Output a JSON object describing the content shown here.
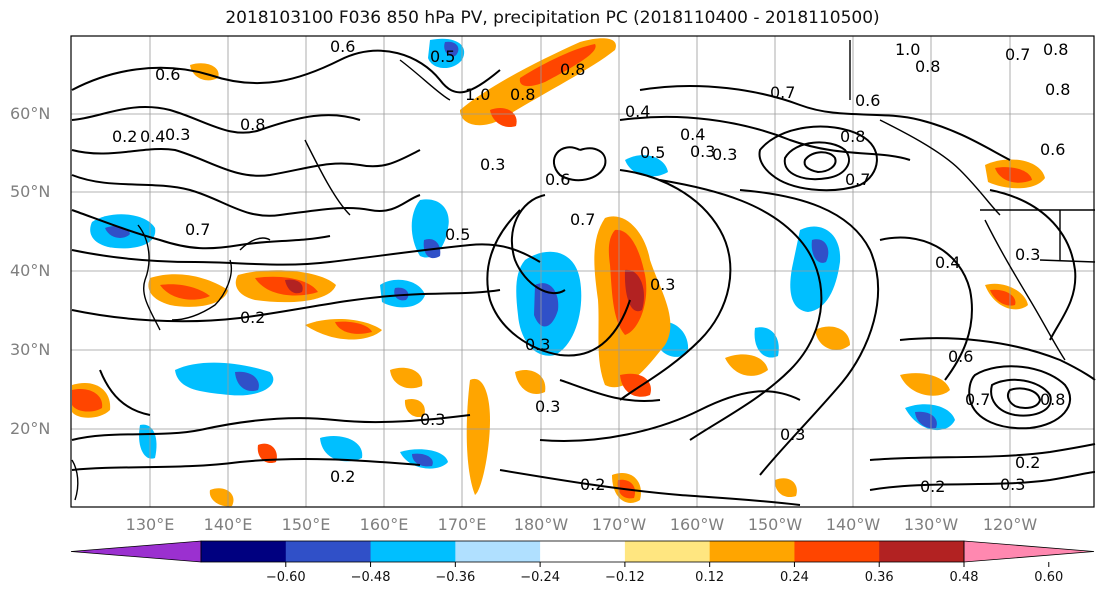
{
  "title": "2018103100 F036 850 hPa PV, precipitation PC (2018110400 - 2018110500)",
  "lat_labels": [
    "60°N",
    "50°N",
    "40°N",
    "30°N",
    "20°N"
  ],
  "lon_labels": [
    "130°E",
    "140°E",
    "150°E",
    "160°E",
    "170°E",
    "180°W",
    "170°W",
    "160°W",
    "150°W",
    "140°W",
    "130°W",
    "120°W"
  ],
  "colorbar": {
    "colors": [
      "#9b30d0",
      "#000080",
      "#3050c8",
      "#00bfff",
      "#b0e0ff",
      "#ffffff",
      "#ffe680",
      "#ffa500",
      "#ff4500",
      "#b22222",
      "#ff88b0"
    ],
    "tick_labels": [
      "−0.60",
      "−0.48",
      "−0.36",
      "−0.24",
      "−0.12",
      "0.12",
      "0.24",
      "0.36",
      "0.48",
      "0.60"
    ]
  },
  "contour_labels": [
    "0.6",
    "0.6",
    "0.5",
    "0.8",
    "0.3",
    "0.4",
    "0.7",
    "0.3",
    "0.6",
    "0.7",
    "0.5",
    "0.2",
    "0.3",
    "0.3",
    "0.3",
    "1.0",
    "0.8",
    "0.8",
    "0.4",
    "0.4",
    "0.5",
    "0.3",
    "0.3",
    "0.6",
    "0.7",
    "0.7",
    "0.6",
    "0.8",
    "0.7",
    "0.4",
    "0.3",
    "1.0",
    "0.8",
    "0.8",
    "0.8",
    "0.3",
    "0.6",
    "0.7",
    "0.8",
    "0.3",
    "0.2",
    "0.2",
    "0.3",
    "0.2",
    "0.2",
    "0.2"
  ]
}
